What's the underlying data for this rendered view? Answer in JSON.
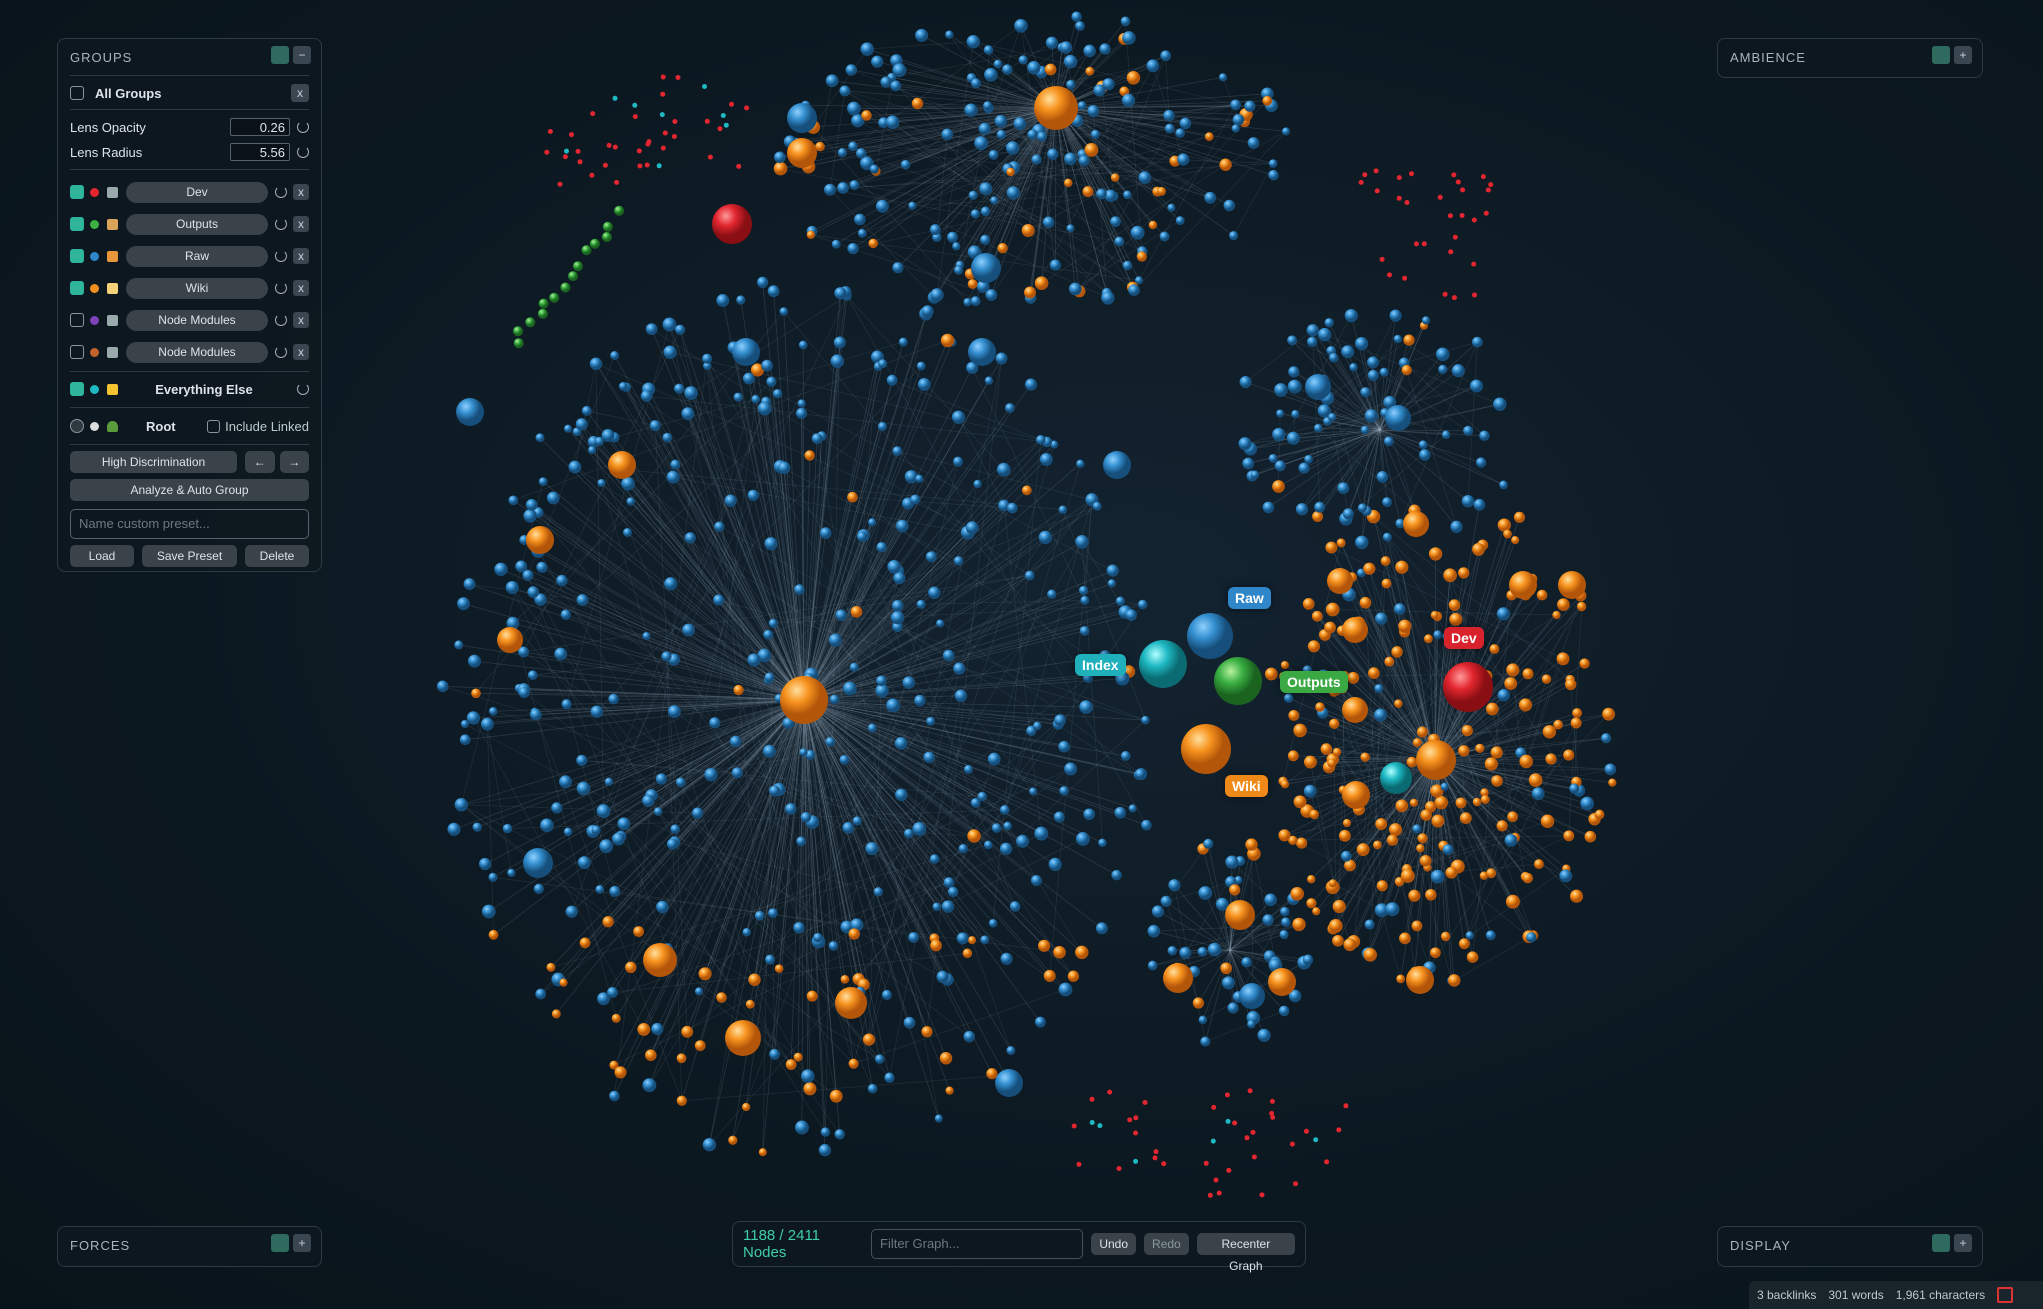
{
  "groups_panel": {
    "title": "GROUPS",
    "collapse": "−",
    "all_groups": "All Groups",
    "remove": "x",
    "lens_opacity": {
      "label": "Lens Opacity",
      "value": 0.26
    },
    "lens_radius": {
      "label": "Lens Radius",
      "value": 5.56
    },
    "groups": [
      {
        "name": "Dev",
        "checked": true,
        "color": "#e3262f",
        "icon": "#9aa"
      },
      {
        "name": "Outputs",
        "checked": true,
        "color": "#3bb043",
        "icon": "#d9a35a"
      },
      {
        "name": "Raw",
        "checked": true,
        "color": "#2f86c9",
        "icon": "#e8963a"
      },
      {
        "name": "Wiki",
        "checked": true,
        "color": "#f2901f",
        "icon": "#f3d27a"
      },
      {
        "name": "Node Modules",
        "checked": false,
        "color": "#7d42b8",
        "icon": "#9aa"
      },
      {
        "name": "Node Modules",
        "checked": false,
        "color": "#c2622c",
        "icon": "#9aa"
      }
    ],
    "everything_else": {
      "name": "Everything Else",
      "color": "#1fb9c4"
    },
    "root": "Root",
    "include_linked": "Include Linked",
    "high_discrimination": "High Discrimination",
    "prev": "←",
    "next": "→",
    "analyze": "Analyze & Auto Group",
    "preset_placeholder": "Name custom preset...",
    "load": "Load",
    "save_preset": "Save Preset",
    "delete": "Delete"
  },
  "ambience_panel": {
    "title": "AMBIENCE",
    "expand": "+"
  },
  "forces_panel": {
    "title": "FORCES",
    "expand": "+"
  },
  "display_panel": {
    "title": "DISPLAY",
    "expand": "+"
  },
  "graph_labels": [
    {
      "text": "Raw",
      "color": "#2f86c9"
    },
    {
      "text": "Index",
      "color": "#1fb0bb"
    },
    {
      "text": "Outputs",
      "color": "#3aa843"
    },
    {
      "text": "Dev",
      "color": "#d8222c"
    },
    {
      "text": "Wiki",
      "color": "#ef8a1a"
    }
  ],
  "toolbar": {
    "node_count": "1188 / 2411 Nodes",
    "filter_placeholder": "Filter Graph...",
    "undo": "Undo",
    "redo": "Redo",
    "recenter": "Recenter Graph"
  },
  "status_bar": {
    "backlinks": "3 backlinks",
    "words": "301 words",
    "characters": "1,961 characters"
  }
}
